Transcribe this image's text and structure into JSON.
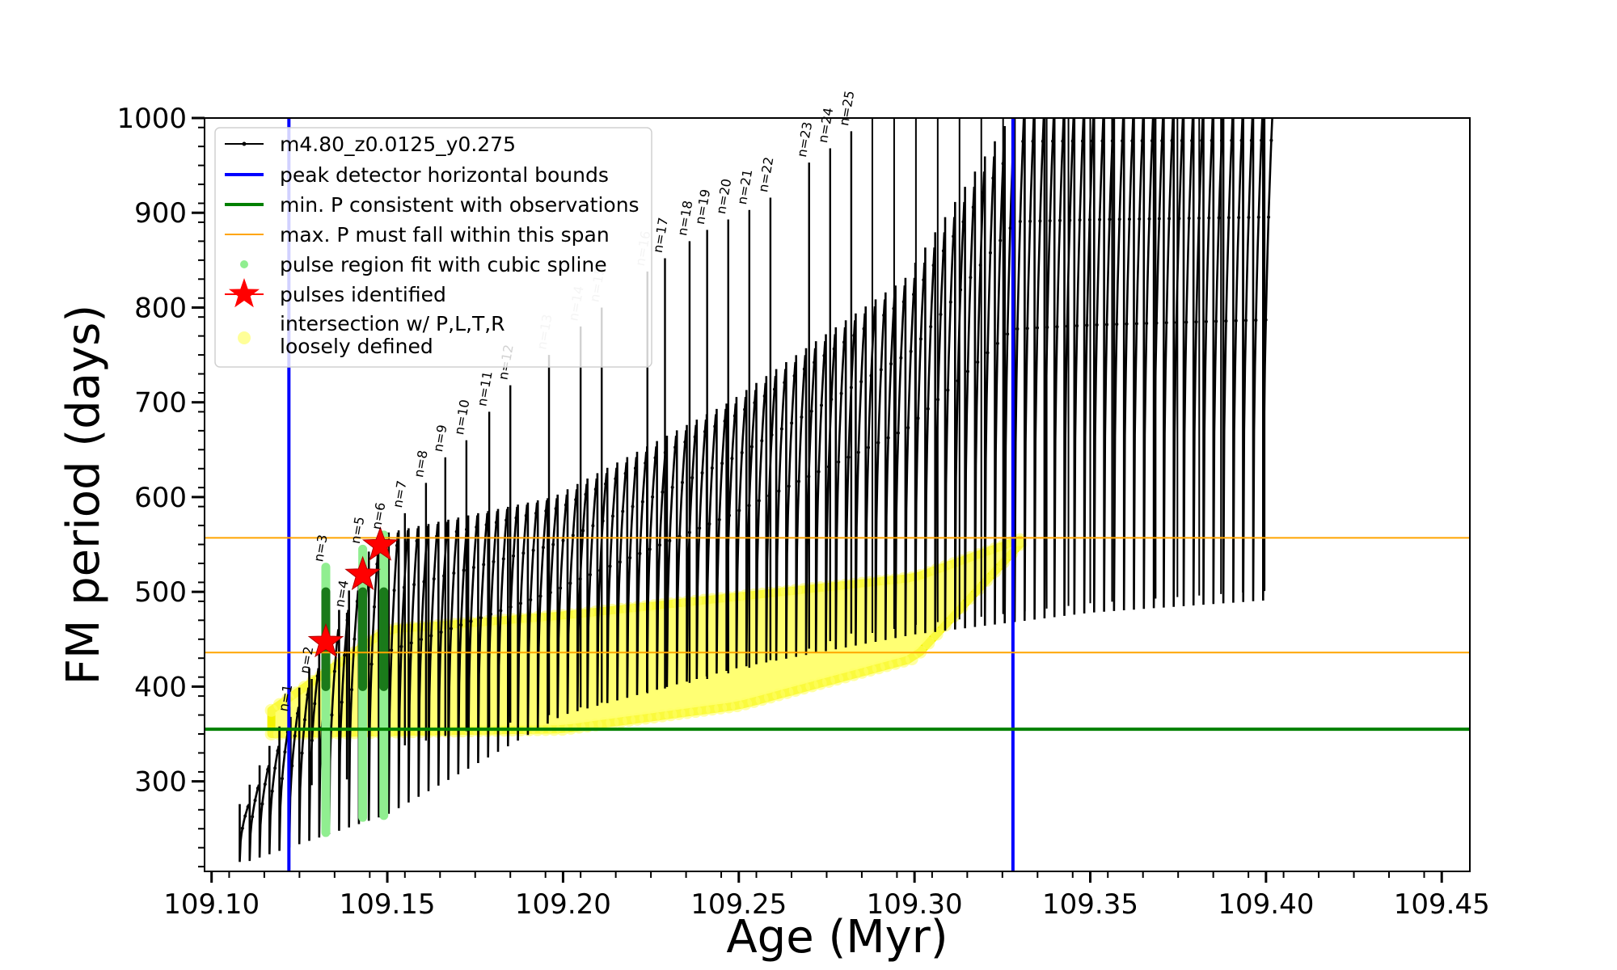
{
  "chart_data": {
    "type": "line",
    "title": "",
    "xlabel": "Age (Myr)",
    "ylabel": "FM period (days)",
    "xlim": [
      109.098,
      109.458
    ],
    "ylim": [
      205,
      1000
    ],
    "x_ticks": [
      109.1,
      109.15,
      109.2,
      109.25,
      109.3,
      109.35,
      109.4,
      109.45
    ],
    "x_tick_labels": [
      "109.10",
      "109.15",
      "109.20",
      "109.25",
      "109.30",
      "109.35",
      "109.40",
      "109.45"
    ],
    "y_ticks": [
      300,
      400,
      500,
      600,
      700,
      800,
      900,
      1000
    ],
    "y_tick_labels": [
      "300",
      "400",
      "500",
      "600",
      "700",
      "800",
      "900",
      "1000"
    ],
    "grid": false,
    "legend_position": "top-left",
    "legend": [
      {
        "label": "m4.80_z0.0125_y0.275",
        "kind": "line-marker",
        "color": "#000000"
      },
      {
        "label": "peak detector horizontal bounds",
        "kind": "line",
        "color": "#0000ff"
      },
      {
        "label": "min. P consistent with observations",
        "kind": "line",
        "color": "#008000"
      },
      {
        "label": "max. P must fall within this span",
        "kind": "thin-line",
        "color": "#ffa500"
      },
      {
        "label": "pulse region fit with cubic spline",
        "kind": "dot",
        "color": "#90ee90"
      },
      {
        "label": "pulses identified",
        "kind": "star",
        "color": "#ff0000"
      },
      {
        "label": "intersection w/ P,L,T,R\nloosely defined",
        "kind": "big-dot",
        "color": "#ffff00"
      }
    ],
    "vertical_lines": [
      {
        "x": 109.122,
        "color": "#0000ff",
        "name": "peak detector horizontal bounds"
      },
      {
        "x": 109.328,
        "color": "#0000ff",
        "name": "peak detector horizontal bounds"
      }
    ],
    "horizontal_lines": [
      {
        "y": 355,
        "color": "#008000",
        "name": "min. P consistent with observations"
      },
      {
        "y": 436,
        "color": "#ffa500",
        "name": "max. P must fall within this span"
      },
      {
        "y": 557,
        "color": "#ffa500",
        "name": "max. P must fall within this span"
      }
    ],
    "pulses": [
      {
        "n": 1,
        "age": 109.1225,
        "period_min": 300,
        "period_max": 368
      },
      {
        "n": 2,
        "age": 109.1285,
        "period_min": 296,
        "period_max": 408
      },
      {
        "n": 3,
        "age": 109.1325,
        "period_min": 246,
        "period_max": 526
      },
      {
        "n": 4,
        "age": 109.1385,
        "period_min": 302,
        "period_max": 478
      },
      {
        "n": 5,
        "age": 109.143,
        "period_min": 262,
        "period_max": 545
      },
      {
        "n": 6,
        "age": 109.149,
        "period_min": 264,
        "period_max": 560
      },
      {
        "n": 7,
        "age": 109.155,
        "period_min": 338,
        "period_max": 583
      },
      {
        "n": 8,
        "age": 109.161,
        "period_min": 343,
        "period_max": 615
      },
      {
        "n": 9,
        "age": 109.1665,
        "period_min": 348,
        "period_max": 642
      },
      {
        "n": 10,
        "age": 109.1725,
        "period_min": 353,
        "period_max": 660
      },
      {
        "n": 11,
        "age": 109.179,
        "period_min": 357,
        "period_max": 690
      },
      {
        "n": 12,
        "age": 109.185,
        "period_min": 362,
        "period_max": 718
      },
      {
        "n": 13,
        "age": 109.196,
        "period_min": 370,
        "period_max": 750
      },
      {
        "n": 14,
        "age": 109.205,
        "period_min": 378,
        "period_max": 780
      },
      {
        "n": 15,
        "age": 109.211,
        "period_min": 383,
        "period_max": 800
      },
      {
        "n": 16,
        "age": 109.224,
        "period_min": 393,
        "period_max": 838
      },
      {
        "n": 17,
        "age": 109.229,
        "period_min": 398,
        "period_max": 852
      },
      {
        "n": 18,
        "age": 109.236,
        "period_min": 404,
        "period_max": 870
      },
      {
        "n": 19,
        "age": 109.241,
        "period_min": 408,
        "period_max": 882
      },
      {
        "n": 20,
        "age": 109.247,
        "period_min": 414,
        "period_max": 893
      },
      {
        "n": 21,
        "age": 109.253,
        "period_min": 420,
        "period_max": 903
      },
      {
        "n": 22,
        "age": 109.259,
        "period_min": 428,
        "period_max": 916
      },
      {
        "n": 23,
        "age": 109.27,
        "period_min": 440,
        "period_max": 953
      },
      {
        "n": 24,
        "age": 109.276,
        "period_min": 448,
        "period_max": 968
      },
      {
        "n": 25,
        "age": 109.282,
        "period_min": 456,
        "period_max": 986
      }
    ],
    "pulse_labels": [
      "n=1",
      "n=2",
      "n=3",
      "n=4",
      "n=5",
      "n=6",
      "n=7",
      "n=8",
      "n=9",
      "n=10",
      "n=11",
      "n=12",
      "n=13",
      "n=14",
      "n=15",
      "n=16",
      "n=17",
      "n=18",
      "n=19",
      "n=20",
      "n=21",
      "n=22",
      "n=23",
      "n=24",
      "n=25"
    ],
    "faded_labels": [
      "n=13",
      "n=14",
      "n=15",
      "n=16"
    ],
    "spline_fit_pulses": [
      3,
      5,
      6
    ],
    "identified_pulses": [
      {
        "n": 3,
        "age": 109.1325,
        "period": 447
      },
      {
        "n": 5,
        "age": 109.143,
        "period": 518
      },
      {
        "n": 6,
        "age": 109.148,
        "period": 549
      }
    ],
    "track_envelope": {
      "description_points_lower": [
        [
          109.11,
          215
        ],
        [
          109.15,
          265
        ],
        [
          109.2,
          370
        ],
        [
          109.25,
          420
        ],
        [
          109.3,
          455
        ],
        [
          109.35,
          478
        ],
        [
          109.4,
          491
        ]
      ],
      "description_points_upper": [
        [
          109.11,
          270
        ],
        [
          109.15,
          560
        ],
        [
          109.2,
          600
        ],
        [
          109.25,
          700
        ],
        [
          109.3,
          830
        ],
        [
          109.33,
          1000
        ],
        [
          109.402,
          1000
        ]
      ],
      "age_start": 109.108,
      "age_end": 109.402
    },
    "intersection_band": {
      "lower": [
        [
          109.117,
          350
        ],
        [
          109.15,
          352
        ],
        [
          109.2,
          355
        ],
        [
          109.25,
          380
        ],
        [
          109.3,
          430
        ],
        [
          109.33,
          550
        ]
      ],
      "upper": [
        [
          109.117,
          375
        ],
        [
          109.15,
          460
        ],
        [
          109.2,
          475
        ],
        [
          109.25,
          495
        ],
        [
          109.3,
          515
        ],
        [
          109.33,
          555
        ]
      ]
    }
  }
}
